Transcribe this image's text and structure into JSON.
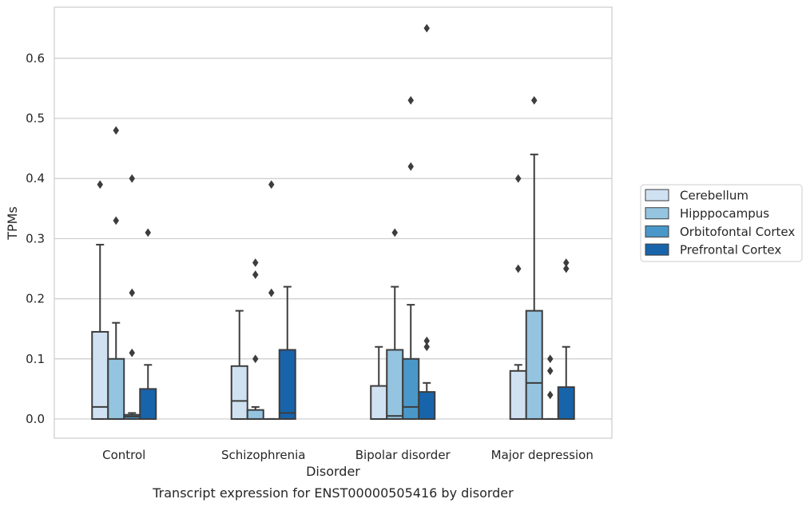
{
  "chart_data": {
    "type": "boxplot",
    "caption": "Transcript expression for ENST00000505416 by disorder",
    "xlabel": "Disorder",
    "ylabel": "TPMs",
    "ylim": [
      -0.032,
      0.685
    ],
    "yticks": [
      0.0,
      0.1,
      0.2,
      0.3,
      0.4,
      0.5,
      0.6
    ],
    "ytick_labels": [
      "0.0",
      "0.1",
      "0.2",
      "0.3",
      "0.4",
      "0.5",
      "0.6"
    ],
    "grid": true,
    "legend_position": "right",
    "categories": [
      "Control",
      "Schizophrenia",
      "Bipolar disorder",
      "Major depression"
    ],
    "series": [
      {
        "name": "Cerebellum",
        "color": "#d0e1f2",
        "boxes": [
          {
            "q1": 0.0,
            "median": 0.02,
            "q3": 0.145,
            "whislo": 0.0,
            "whishi": 0.29,
            "fliers": [
              0.39
            ]
          },
          {
            "q1": 0.0,
            "median": 0.03,
            "q3": 0.088,
            "whislo": 0.0,
            "whishi": 0.18,
            "fliers": []
          },
          {
            "q1": 0.0,
            "median": 0.0,
            "q3": 0.055,
            "whislo": 0.0,
            "whishi": 0.12,
            "fliers": []
          },
          {
            "q1": 0.0,
            "median": 0.0,
            "q3": 0.08,
            "whislo": 0.0,
            "whishi": 0.09,
            "fliers": [
              0.25,
              0.4
            ]
          }
        ]
      },
      {
        "name": "Hipppocampus",
        "color": "#94c4df",
        "boxes": [
          {
            "q1": 0.0,
            "median": 0.0,
            "q3": 0.1,
            "whislo": 0.0,
            "whishi": 0.16,
            "fliers": [
              0.33,
              0.48
            ]
          },
          {
            "q1": 0.0,
            "median": 0.0,
            "q3": 0.015,
            "whislo": 0.0,
            "whishi": 0.02,
            "fliers": [
              0.1,
              0.24,
              0.26
            ]
          },
          {
            "q1": 0.0,
            "median": 0.005,
            "q3": 0.115,
            "whislo": 0.0,
            "whishi": 0.22,
            "fliers": [
              0.31
            ]
          },
          {
            "q1": 0.0,
            "median": 0.06,
            "q3": 0.18,
            "whislo": 0.0,
            "whishi": 0.44,
            "fliers": [
              0.53
            ]
          }
        ]
      },
      {
        "name": "Orbitofontal Cortex",
        "color": "#4a98c9",
        "boxes": [
          {
            "q1": 0.0,
            "median": 0.004,
            "q3": 0.007,
            "whislo": 0.0,
            "whishi": 0.01,
            "fliers": [
              0.11,
              0.21,
              0.4
            ]
          },
          {
            "q1": 0.0,
            "median": 0.0,
            "q3": 0.0,
            "whislo": 0.0,
            "whishi": 0.0,
            "fliers": [
              0.21,
              0.39
            ]
          },
          {
            "q1": 0.0,
            "median": 0.02,
            "q3": 0.1,
            "whislo": 0.0,
            "whishi": 0.19,
            "fliers": [
              0.42,
              0.53
            ]
          },
          {
            "q1": 0.0,
            "median": 0.0,
            "q3": 0.0,
            "whislo": 0.0,
            "whishi": 0.0,
            "fliers": [
              0.04,
              0.08,
              0.1
            ]
          }
        ]
      },
      {
        "name": "Prefrontal Cortex",
        "color": "#1764ab",
        "boxes": [
          {
            "q1": 0.0,
            "median": 0.0,
            "q3": 0.05,
            "whislo": 0.0,
            "whishi": 0.09,
            "fliers": [
              0.31
            ]
          },
          {
            "q1": 0.0,
            "median": 0.01,
            "q3": 0.115,
            "whislo": 0.0,
            "whishi": 0.22,
            "fliers": []
          },
          {
            "q1": 0.0,
            "median": 0.0,
            "q3": 0.045,
            "whislo": 0.0,
            "whishi": 0.06,
            "fliers": [
              0.12,
              0.13,
              0.65
            ]
          },
          {
            "q1": 0.0,
            "median": 0.0,
            "q3": 0.053,
            "whislo": 0.0,
            "whishi": 0.12,
            "fliers": [
              0.25,
              0.26
            ]
          }
        ]
      }
    ]
  }
}
